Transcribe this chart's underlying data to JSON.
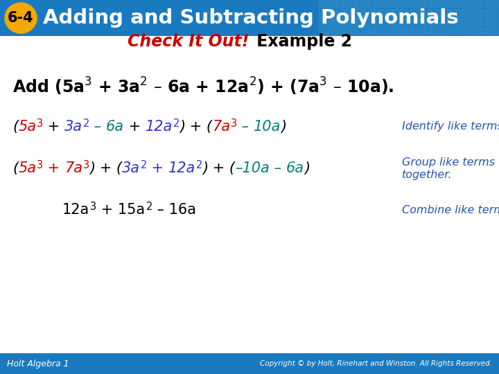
{
  "header_bg_color": "#1a7abf",
  "header_text": "Adding and Subtracting Polynomials",
  "header_text_color": "#ffffff",
  "badge_bg_color": "#f5a800",
  "badge_text": "6-4",
  "badge_text_color": "#000000",
  "slide_bg_color": "#ffffff",
  "subtitle_red": "Check It Out!",
  "subtitle_black": " Example 2",
  "subtitle_red_color": "#cc0000",
  "subtitle_black_color": "#000000",
  "footer_bg_color": "#1a7abf",
  "footer_left": "Holt Algebra 1",
  "footer_right": "Copyright © by Holt, Rinehart and Winston. All Rights Reserved.",
  "footer_text_color": "#ffffff",
  "color_red": "#cc0000",
  "color_blue": "#3333cc",
  "color_teal": "#008080",
  "color_dark": "#2255aa",
  "color_black": "#000000",
  "en_dash": "–",
  "minus": "−"
}
